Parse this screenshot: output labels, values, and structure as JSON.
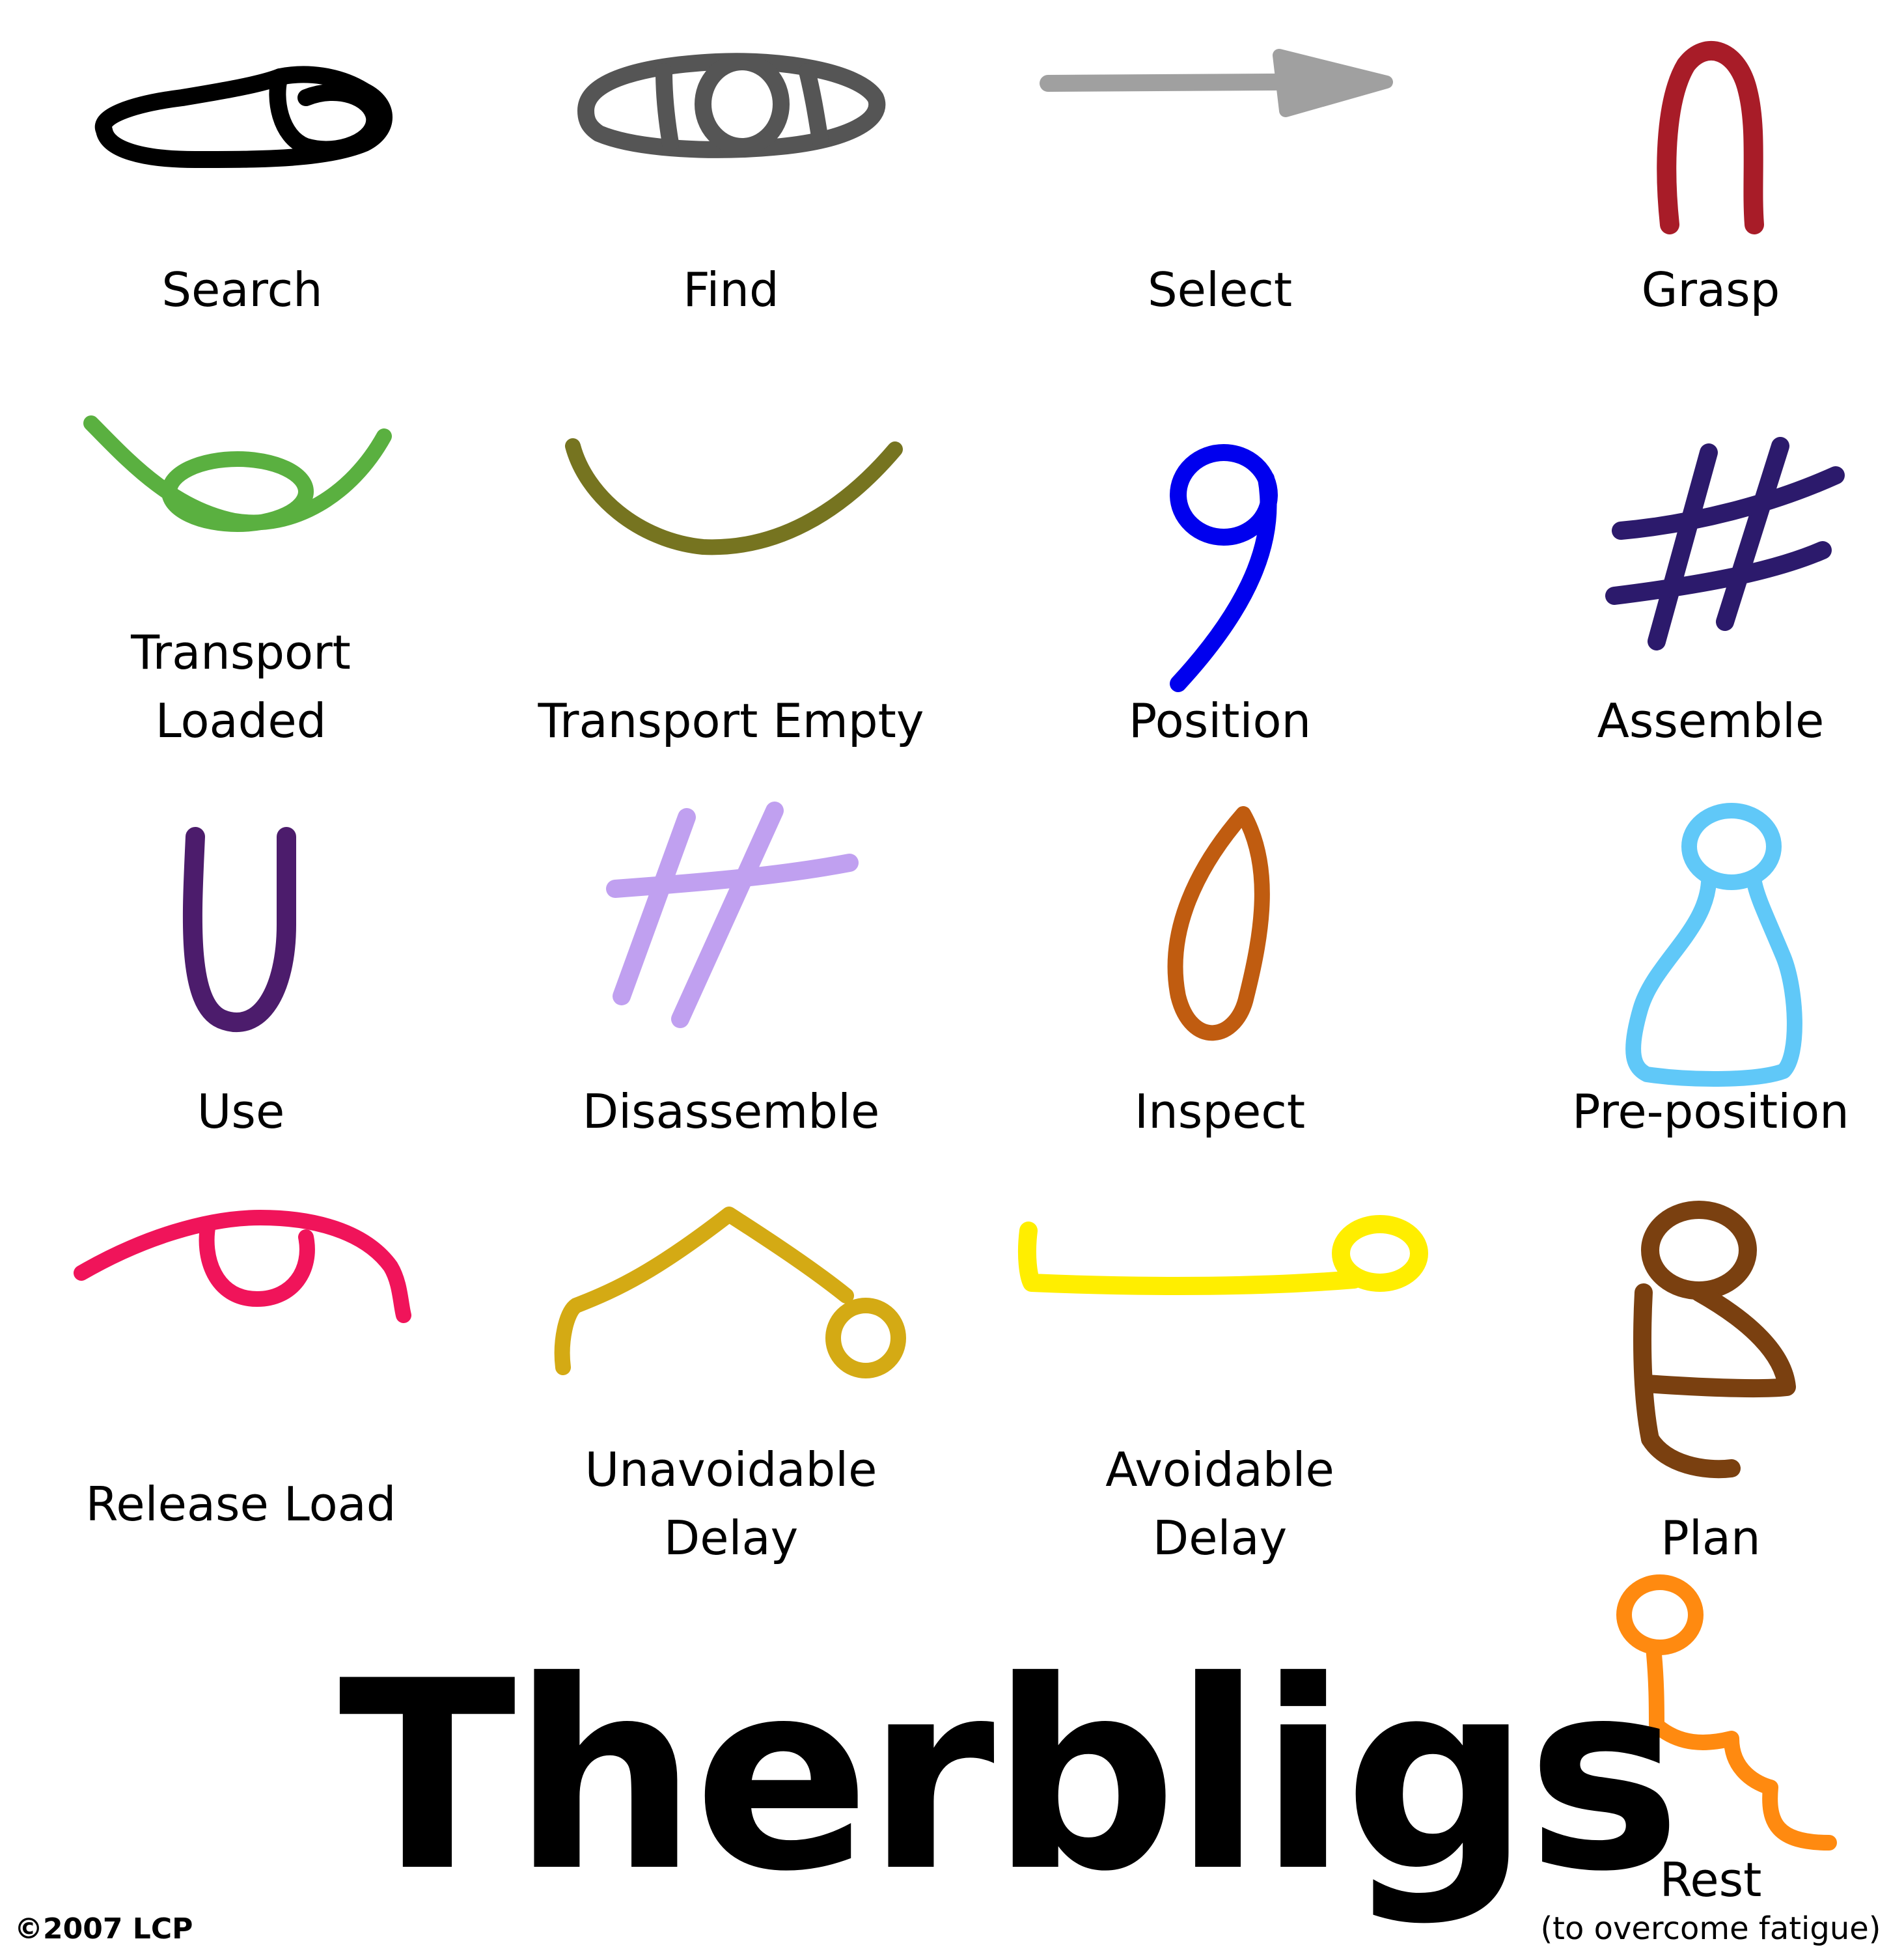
{
  "title": "Therbligs",
  "copyright": "©2007 LCP",
  "symbols": [
    {
      "name": "Search",
      "color": "#000000",
      "icon": "search-icon"
    },
    {
      "name": "Find",
      "color": "#555555",
      "icon": "find-icon"
    },
    {
      "name": "Select",
      "color": "#a0a0a0",
      "icon": "select-arrow-icon"
    },
    {
      "name": "Grasp",
      "color": "#a81c28",
      "icon": "grasp-icon"
    },
    {
      "name": "Transport Loaded",
      "line1": "Transport",
      "line2": "Loaded",
      "color": "#5ab040",
      "icon": "transport-loaded-icon"
    },
    {
      "name": "Transport Empty",
      "color": "#767420",
      "icon": "transport-empty-icon"
    },
    {
      "name": "Position",
      "color": "#0000ee",
      "icon": "position-icon"
    },
    {
      "name": "Assemble",
      "color": "#2c1a6c",
      "icon": "assemble-icon"
    },
    {
      "name": "Use",
      "color": "#4c1c6c",
      "icon": "use-icon"
    },
    {
      "name": "Disassemble",
      "color": "#c0a0f0",
      "icon": "disassemble-icon"
    },
    {
      "name": "Inspect",
      "color": "#c05c10",
      "icon": "inspect-icon"
    },
    {
      "name": "Pre-position",
      "color": "#60c8f8",
      "icon": "pre-position-icon"
    },
    {
      "name": "Release Load",
      "color": "#f0145a",
      "icon": "release-load-icon"
    },
    {
      "name": "Unavoidable Delay",
      "line1": "Unavoidable",
      "line2": "Delay",
      "color": "#d4aa14",
      "icon": "unavoidable-delay-icon"
    },
    {
      "name": "Avoidable Delay",
      "line1": "Avoidable",
      "line2": "Delay",
      "color": "#ffee00",
      "icon": "avoidable-delay-icon"
    },
    {
      "name": "Plan",
      "color": "#7a4010",
      "icon": "plan-icon"
    },
    {
      "name": "Rest",
      "note": "(to overcome fatigue)",
      "color": "#ff8a10",
      "icon": "rest-icon"
    }
  ]
}
